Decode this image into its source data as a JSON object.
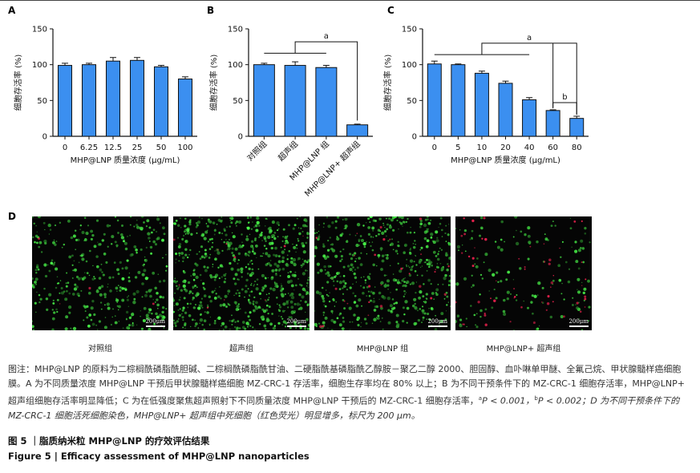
{
  "panels": {
    "a": "A",
    "b": "B",
    "c": "C",
    "d": "D"
  },
  "colors": {
    "bar": "#3b8ff0",
    "bar_stroke": "#111111",
    "live_cell": "#3fd14a",
    "dead_cell": "#e0204a"
  },
  "chart_data": [
    {
      "type": "bar",
      "id": "A",
      "ylabel": "细胞存活率 (%)",
      "xlabel": "MHP@LNP 质量浓度 (μg/mL)",
      "ylim": [
        0,
        150
      ],
      "yticks": [
        "0",
        "50",
        "100",
        "150"
      ],
      "categories": [
        "0",
        "6.25",
        "12.5",
        "25",
        "50",
        "100"
      ],
      "values": [
        99,
        100,
        105,
        106,
        97,
        80
      ],
      "errors": [
        3,
        2,
        5,
        4,
        2,
        3
      ]
    },
    {
      "type": "bar",
      "id": "B",
      "ylabel": "细胞存活率 (%)",
      "xlabel": "",
      "ylim": [
        0,
        150
      ],
      "yticks": [
        "0",
        "50",
        "100",
        "150"
      ],
      "categories": [
        "对照组",
        "超声组",
        "MHP@LNP 组",
        "MHP@LNP+ 超声组"
      ],
      "values": [
        100,
        99,
        96,
        16
      ],
      "errors": [
        2,
        5,
        3,
        1
      ],
      "annotation": "a"
    },
    {
      "type": "bar",
      "id": "C",
      "ylabel": "细胞存活率 (%)",
      "xlabel": "MHP@LNP 质量浓度 (μg/mL)",
      "ylim": [
        0,
        150
      ],
      "yticks": [
        "0",
        "50",
        "100",
        "150"
      ],
      "categories": [
        "0",
        "5",
        "10",
        "20",
        "40",
        "60",
        "80"
      ],
      "values": [
        101,
        100,
        88,
        74,
        51,
        36,
        25
      ],
      "errors": [
        4,
        1,
        3,
        3,
        3,
        1,
        3
      ],
      "annotations": [
        "a",
        "b"
      ]
    }
  ],
  "microscopy": {
    "scale_text": "200μm",
    "labels": [
      "对照组",
      "超声组",
      "MHP@LNP 组",
      "MHP@LNP+ 超声组"
    ]
  },
  "note": {
    "p1": "图注：MHP@LNP 的原料为二棕榈酰磷脂酰胆碱、二棕榈酰磷脂酰甘油、二硬脂酰基磷脂酰乙醇胺－聚乙二醇 2000、胆固醇、血卟啉单甲醚、全氟己烷、甲状腺髓样癌细胞膜。A 为不同质量浓度 MHP@LNP 干预后甲状腺髓样癌细胞 MZ-CRC-1 存活率，细胞生存率均在 80% 以上；B 为不同干预条件下的 MZ-CRC-1 细胞存活率，MHP@LNP+ 超声组细胞存活率明显降低；C 为在低强度聚焦超声照射下不同质量浓度 MHP@LNP 干预后的 MZ-CRC-1 细胞存活率，",
    "sup_a": "a",
    "p_a": "P < 0.001，",
    "sup_b": "b",
    "p_b": "P < 0.002；D 为不同干预条件下的 MZ-CRC-1 细胞活死细胞染色，MHP@LNP+ 超声组中死细胞（红色荧光）明显增多，标尺为 200 μm。"
  },
  "figure_title_cn": "图 5 ｜脂质纳米粒 MHP@LNP 的疗效评估结果",
  "figure_title_en": "Figure 5  |  Efficacy assessment of MHP@LNP nanoparticles"
}
